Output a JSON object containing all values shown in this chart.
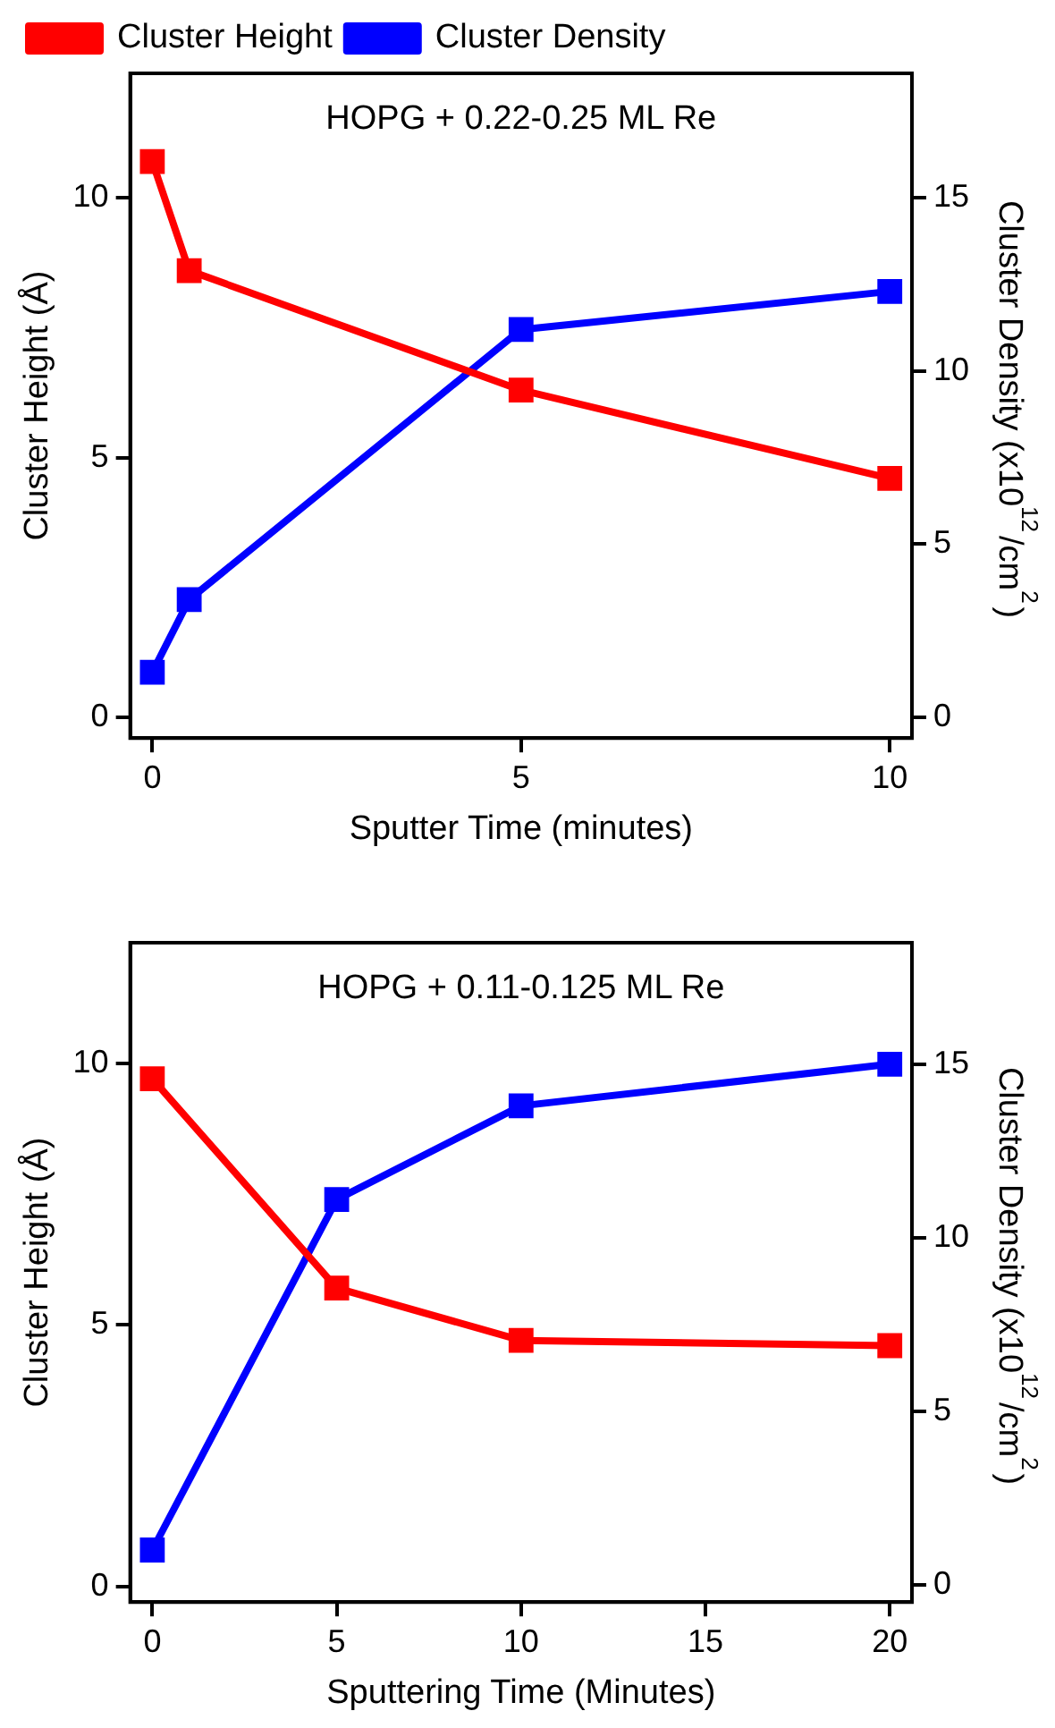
{
  "chart_data": [
    {
      "type": "line",
      "xlabel": "Sputter Time (minutes)",
      "ylabel": "Cluster Height (Å)",
      "y2label": "Cluster Density (x10$^{12}$/cm$^{2}$)",
      "annotations": [
        "HOPG + 0.22-0.25 ML Re"
      ],
      "x": [
        0,
        0.5,
        5,
        10
      ],
      "series": [
        {
          "name": "Cluster Height",
          "color": "#ff0000",
          "values": [
            10.7,
            8.6,
            6.3,
            4.6
          ]
        },
        {
          "name": "Cluster Density",
          "color": "#0000ff",
          "values": [
            1.3,
            3.4,
            11.2,
            12.3
          ],
          "axis": "y2"
        }
      ],
      "xlim": [
        -0.3,
        10.3
      ],
      "xticks": [
        0,
        5,
        10
      ],
      "ylim": [
        -0.4,
        12.4
      ],
      "yticks": [
        0,
        5,
        10
      ],
      "y2lim": [
        -0.6,
        18.6
      ],
      "y2ticks": [
        0,
        5,
        10,
        15
      ],
      "grid": false,
      "legend": "top left",
      "marker": "square",
      "line_style": "solid"
    },
    {
      "type": "line",
      "xlabel": "Sputtering Time (Minutes)",
      "ylabel": "Cluster Height (Å)",
      "y2label": "Cluster Density (x10$^{12}$/cm$^{2}$)",
      "annotations": [
        "HOPG + 0.11-0.125 ML Re"
      ],
      "x": [
        0,
        5,
        10,
        20
      ],
      "series": [
        {
          "color": "#ff0000",
          "values": [
            9.7,
            5.7,
            4.7,
            4.6
          ]
        },
        {
          "color": "#0000ff",
          "values": [
            1.0,
            11.1,
            13.8,
            15.0
          ],
          "axis": "y2"
        }
      ],
      "xlim": [
        -0.6,
        20.6
      ],
      "xticks": [
        0,
        5,
        10,
        15,
        20
      ],
      "ylim": [
        -0.3,
        12.3
      ],
      "yticks": [
        0,
        5,
        10
      ],
      "y2lim": [
        -0.5,
        18.5
      ],
      "y2ticks": [
        0,
        5,
        10,
        15
      ],
      "grid": false,
      "legend": false,
      "marker": "square",
      "line_style": "solid"
    }
  ]
}
